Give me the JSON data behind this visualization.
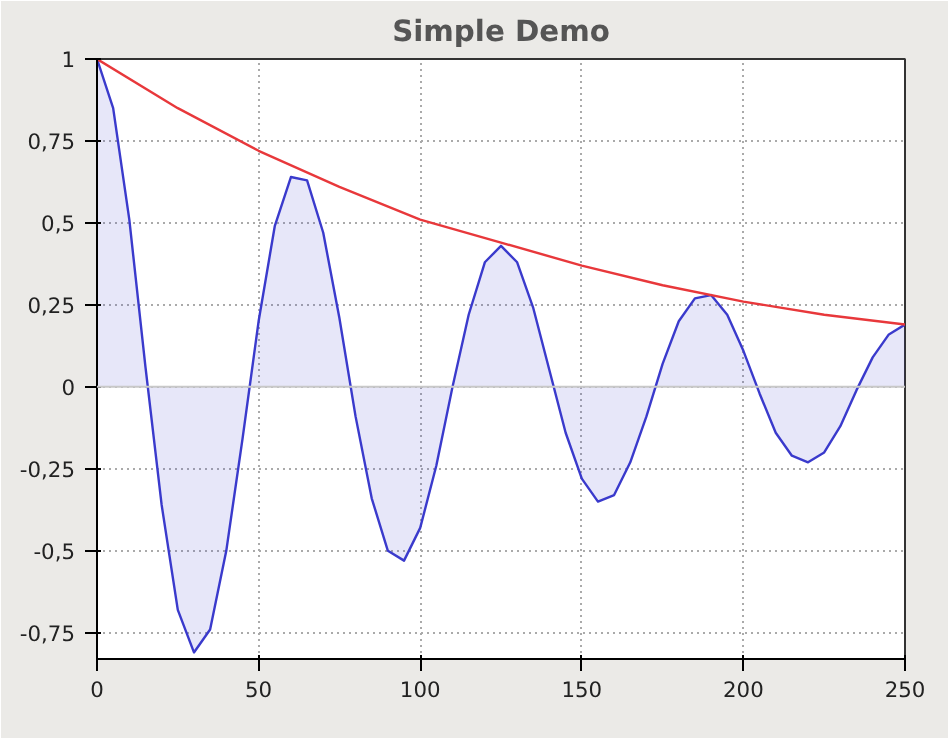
{
  "chart_data": {
    "type": "line",
    "title": "Simple Demo",
    "grid": true,
    "marker": "none",
    "line_style": "solid",
    "xlim": [
      0,
      250
    ],
    "xticks": [
      0,
      50,
      100,
      150,
      200,
      250
    ],
    "ylim": [
      -0.83,
      1
    ],
    "yticks": [
      {
        "value": -0.75,
        "label": "-0,75"
      },
      {
        "value": -0.5,
        "label": "-0,5"
      },
      {
        "value": -0.25,
        "label": "-0,25"
      },
      0,
      {
        "value": 0.25,
        "label": "0,25"
      },
      {
        "value": 0.5,
        "label": "0,5"
      },
      {
        "value": 0.75,
        "label": "0,75"
      },
      1
    ],
    "ref_lines": [
      {
        "axis": "y",
        "value": 0,
        "color": "#c8c8c8",
        "line_style": "solid"
      }
    ],
    "series": [
      {
        "type": "area",
        "color": "#3a3acc",
        "x": [
          0,
          5,
          10,
          15,
          20,
          25,
          30,
          35,
          40,
          45,
          50,
          55,
          60,
          65,
          70,
          75,
          80,
          85,
          90,
          95,
          100,
          105,
          110,
          115,
          120,
          125,
          130,
          135,
          140,
          145,
          150,
          155,
          160,
          165,
          170,
          175,
          180,
          185,
          190,
          195,
          200,
          205,
          210,
          215,
          220,
          225,
          230,
          235,
          240,
          245,
          250
        ],
        "values": [
          1,
          0.85,
          0.51,
          0.06,
          -0.36,
          -0.68,
          -0.81,
          -0.74,
          -0.5,
          -0.16,
          0.2,
          0.49,
          0.64,
          0.63,
          0.47,
          0.21,
          -0.09,
          -0.34,
          -0.5,
          -0.53,
          -0.43,
          -0.24,
          0,
          0.22,
          0.38,
          0.43,
          0.38,
          0.24,
          0.05,
          -0.14,
          -0.28,
          -0.35,
          -0.33,
          -0.23,
          -0.09,
          0.07,
          0.2,
          0.27,
          0.28,
          0.22,
          0.11,
          -0.02,
          -0.14,
          -0.21,
          -0.23,
          -0.2,
          -0.12,
          -0.01,
          0.09,
          0.16,
          0.19
        ]
      },
      {
        "color": "#e8383b",
        "x": [
          0,
          25,
          50,
          75,
          100,
          125,
          150,
          175,
          200,
          225,
          250
        ],
        "values": [
          1,
          0.85,
          0.72,
          0.61,
          0.51,
          0.44,
          0.37,
          0.31,
          0.26,
          0.22,
          0.19
        ]
      }
    ]
  }
}
